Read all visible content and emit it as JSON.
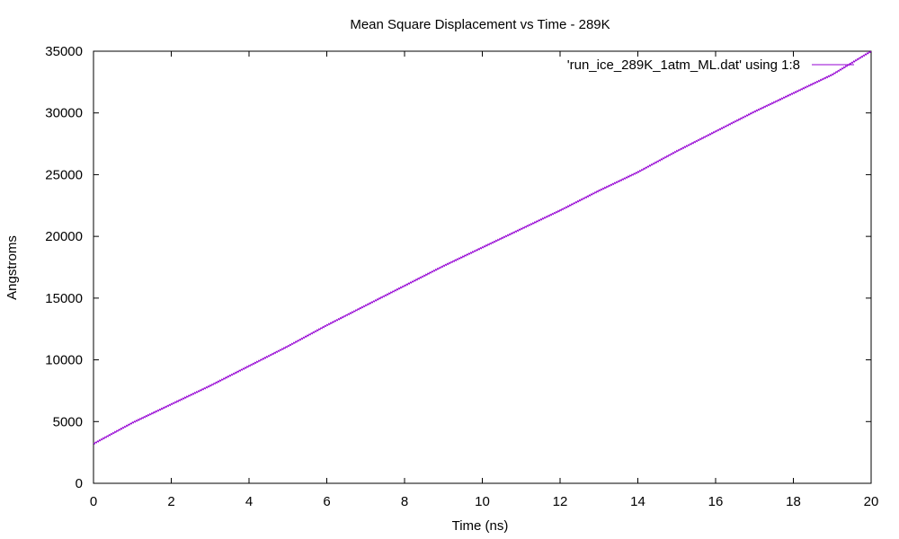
{
  "chart_data": {
    "type": "line",
    "title": "Mean Square Displacement vs Time - 289K",
    "xlabel": "Time (ns)",
    "ylabel": "Angstroms",
    "xlim": [
      0,
      20
    ],
    "ylim": [
      0,
      35000
    ],
    "x_ticks": [
      0,
      2,
      4,
      6,
      8,
      10,
      12,
      14,
      16,
      18,
      20
    ],
    "y_ticks": [
      0,
      5000,
      10000,
      15000,
      20000,
      25000,
      30000,
      35000
    ],
    "grid": false,
    "legend_position": "top-right",
    "series": [
      {
        "name": "'run_ice_289K_1atm_ML.dat' using 1:8",
        "color": "#9400d3",
        "x": [
          0,
          1,
          2,
          3,
          4,
          5,
          6,
          7,
          8,
          9,
          10,
          11,
          12,
          13,
          14,
          15,
          16,
          17,
          18,
          19,
          20
        ],
        "y": [
          3200,
          4900,
          6400,
          7900,
          9500,
          11100,
          12800,
          14400,
          16000,
          17600,
          19100,
          20600,
          22100,
          23700,
          25200,
          26900,
          28500,
          30100,
          31600,
          33100,
          35000
        ]
      }
    ]
  }
}
